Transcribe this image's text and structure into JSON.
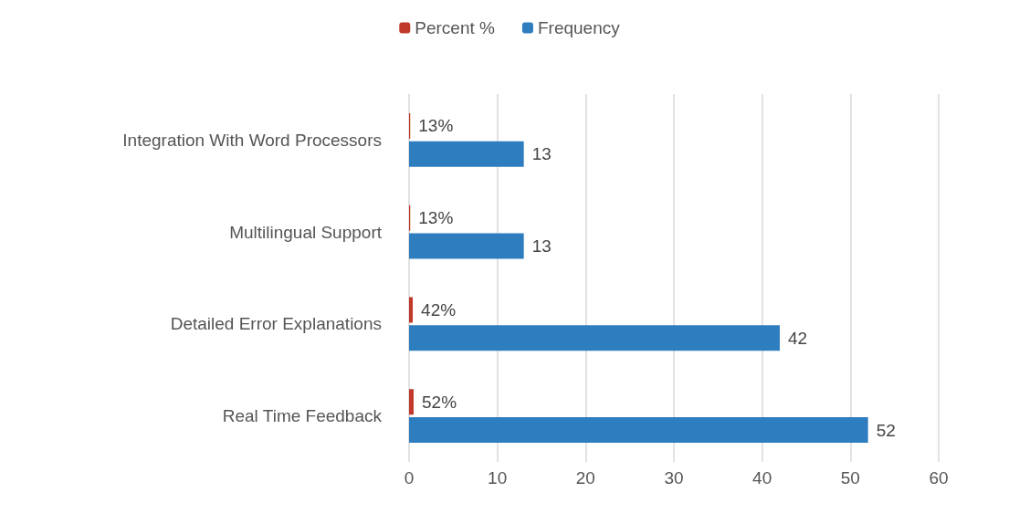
{
  "chart_data": {
    "type": "bar",
    "orientation": "horizontal",
    "categories": [
      "Integration With Word Processors",
      "Multilingual Support",
      "Detailed Error Explanations",
      "Real Time Feedback"
    ],
    "series": [
      {
        "name": "Percent %",
        "color": "#c0392b",
        "values": [
          0.13,
          0.13,
          0.42,
          0.52
        ],
        "value_labels": [
          "13%",
          "13%",
          "42%",
          "52%"
        ]
      },
      {
        "name": "Frequency",
        "color": "#2e7dbf",
        "values": [
          13,
          13,
          42,
          52
        ],
        "value_labels": [
          "13",
          "13",
          "42",
          "52"
        ]
      }
    ],
    "xlim": [
      0,
      60
    ],
    "xticks": [
      0,
      10,
      20,
      30,
      40,
      50,
      60
    ],
    "grid": "x",
    "legend": "top"
  }
}
